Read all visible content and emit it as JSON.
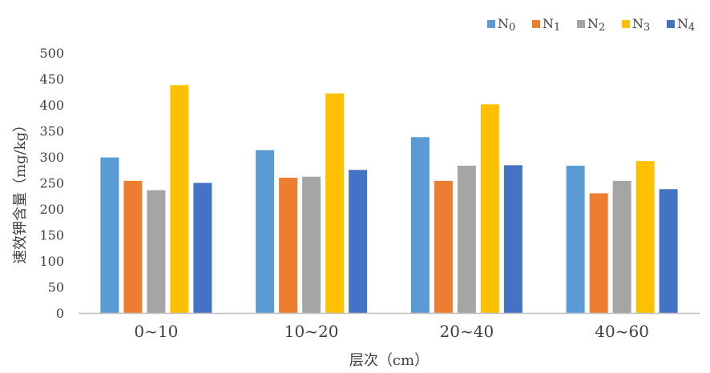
{
  "chart_data": {
    "type": "bar",
    "title": "",
    "xlabel": "层次（cm）",
    "ylabel": "速效钾含量（mg/kg）",
    "ylim": [
      0,
      500
    ],
    "yticks": [
      0,
      50,
      100,
      150,
      200,
      250,
      300,
      350,
      400,
      450,
      500
    ],
    "grid": false,
    "legend_position": "top-right",
    "categories": [
      "0~10",
      "10~20",
      "20~40",
      "40~60"
    ],
    "series": [
      {
        "name": "N0",
        "base": "N",
        "sub": "0",
        "color": "#5b9bd5",
        "values": [
          299,
          313,
          338,
          283
        ]
      },
      {
        "name": "N1",
        "base": "N",
        "sub": "1",
        "color": "#ed7d31",
        "values": [
          254,
          260,
          254,
          230
        ]
      },
      {
        "name": "N2",
        "base": "N",
        "sub": "2",
        "color": "#a5a5a5",
        "values": [
          236,
          262,
          283,
          254
        ]
      },
      {
        "name": "N3",
        "base": "N",
        "sub": "3",
        "color": "#ffc000",
        "values": [
          438,
          422,
          401,
          292
        ]
      },
      {
        "name": "N4",
        "base": "N",
        "sub": "4",
        "color": "#4472c4",
        "values": [
          250,
          275,
          284,
          238
        ]
      }
    ]
  }
}
